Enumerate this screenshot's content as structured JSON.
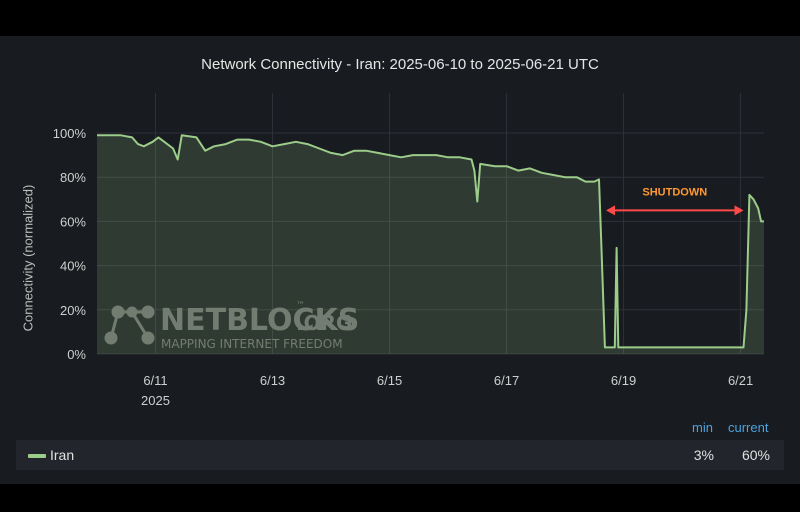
{
  "chart_data": {
    "type": "area",
    "title": "Network Connectivity - Iran: 2025-06-10 to 2025-06-21 UTC",
    "ylabel": "Connectivity (normalized)",
    "xlabel": "",
    "x_start": "2025-06-10",
    "x_end": "2025-06-21",
    "xlim": [
      10.0,
      21.4
    ],
    "ylim": [
      0,
      100
    ],
    "y_ticks": [
      "0%",
      "20%",
      "40%",
      "60%",
      "80%",
      "100%"
    ],
    "x_ticks": [
      {
        "day": 11,
        "label": "6/11",
        "sublabel": "2025"
      },
      {
        "day": 13,
        "label": "6/13",
        "sublabel": ""
      },
      {
        "day": 15,
        "label": "6/15",
        "sublabel": ""
      },
      {
        "day": 17,
        "label": "6/17",
        "sublabel": ""
      },
      {
        "day": 19,
        "label": "6/19",
        "sublabel": ""
      },
      {
        "day": 21,
        "label": "6/21",
        "sublabel": ""
      }
    ],
    "grid": true,
    "legend_placement": "bottom",
    "series": [
      {
        "name": "Iran",
        "color": "#9ccc8a",
        "points": [
          [
            10.0,
            99
          ],
          [
            10.4,
            99
          ],
          [
            10.6,
            98
          ],
          [
            10.7,
            95
          ],
          [
            10.8,
            94
          ],
          [
            10.95,
            96
          ],
          [
            11.05,
            98
          ],
          [
            11.15,
            96
          ],
          [
            11.3,
            93
          ],
          [
            11.38,
            88
          ],
          [
            11.45,
            99
          ],
          [
            11.7,
            98
          ],
          [
            11.85,
            92
          ],
          [
            12.0,
            94
          ],
          [
            12.2,
            95
          ],
          [
            12.4,
            97
          ],
          [
            12.6,
            97
          ],
          [
            12.8,
            96
          ],
          [
            13.0,
            94
          ],
          [
            13.2,
            95
          ],
          [
            13.4,
            96
          ],
          [
            13.6,
            95
          ],
          [
            13.8,
            93
          ],
          [
            14.0,
            91
          ],
          [
            14.2,
            90
          ],
          [
            14.4,
            92
          ],
          [
            14.6,
            92
          ],
          [
            14.8,
            91
          ],
          [
            15.0,
            90
          ],
          [
            15.2,
            89
          ],
          [
            15.4,
            90
          ],
          [
            15.6,
            90
          ],
          [
            15.8,
            90
          ],
          [
            16.0,
            89
          ],
          [
            16.2,
            89
          ],
          [
            16.4,
            88
          ],
          [
            16.45,
            83
          ],
          [
            16.5,
            69
          ],
          [
            16.55,
            86
          ],
          [
            16.8,
            85
          ],
          [
            17.0,
            85
          ],
          [
            17.2,
            83
          ],
          [
            17.4,
            84
          ],
          [
            17.6,
            82
          ],
          [
            17.8,
            81
          ],
          [
            18.0,
            80
          ],
          [
            18.2,
            80
          ],
          [
            18.35,
            78
          ],
          [
            18.5,
            78
          ],
          [
            18.58,
            79
          ],
          [
            18.62,
            50
          ],
          [
            18.68,
            3
          ],
          [
            18.85,
            3
          ],
          [
            18.88,
            48
          ],
          [
            18.91,
            3
          ],
          [
            19.2,
            3
          ],
          [
            19.6,
            3
          ],
          [
            20.0,
            3
          ],
          [
            20.4,
            3
          ],
          [
            20.8,
            3
          ],
          [
            21.05,
            3
          ],
          [
            21.1,
            20
          ],
          [
            21.15,
            72
          ],
          [
            21.22,
            70
          ],
          [
            21.3,
            66
          ],
          [
            21.35,
            60
          ],
          [
            21.4,
            60
          ]
        ]
      }
    ],
    "annotations": [
      {
        "text": "SHUTDOWN",
        "from_day": 18.7,
        "to_day": 21.05,
        "y": 65,
        "color": "#ff4a4a",
        "text_color": "#ff9933"
      }
    ]
  },
  "watermark": {
    "main": "NETBLOCKS",
    "suffix": ".ORG",
    "tm": "™",
    "tagline": "MAPPING INTERNET FREEDOM"
  },
  "legend": {
    "header_min": "min",
    "header_current": "current",
    "series_name": "Iran",
    "min_value": "3%",
    "current_value": "60%"
  }
}
